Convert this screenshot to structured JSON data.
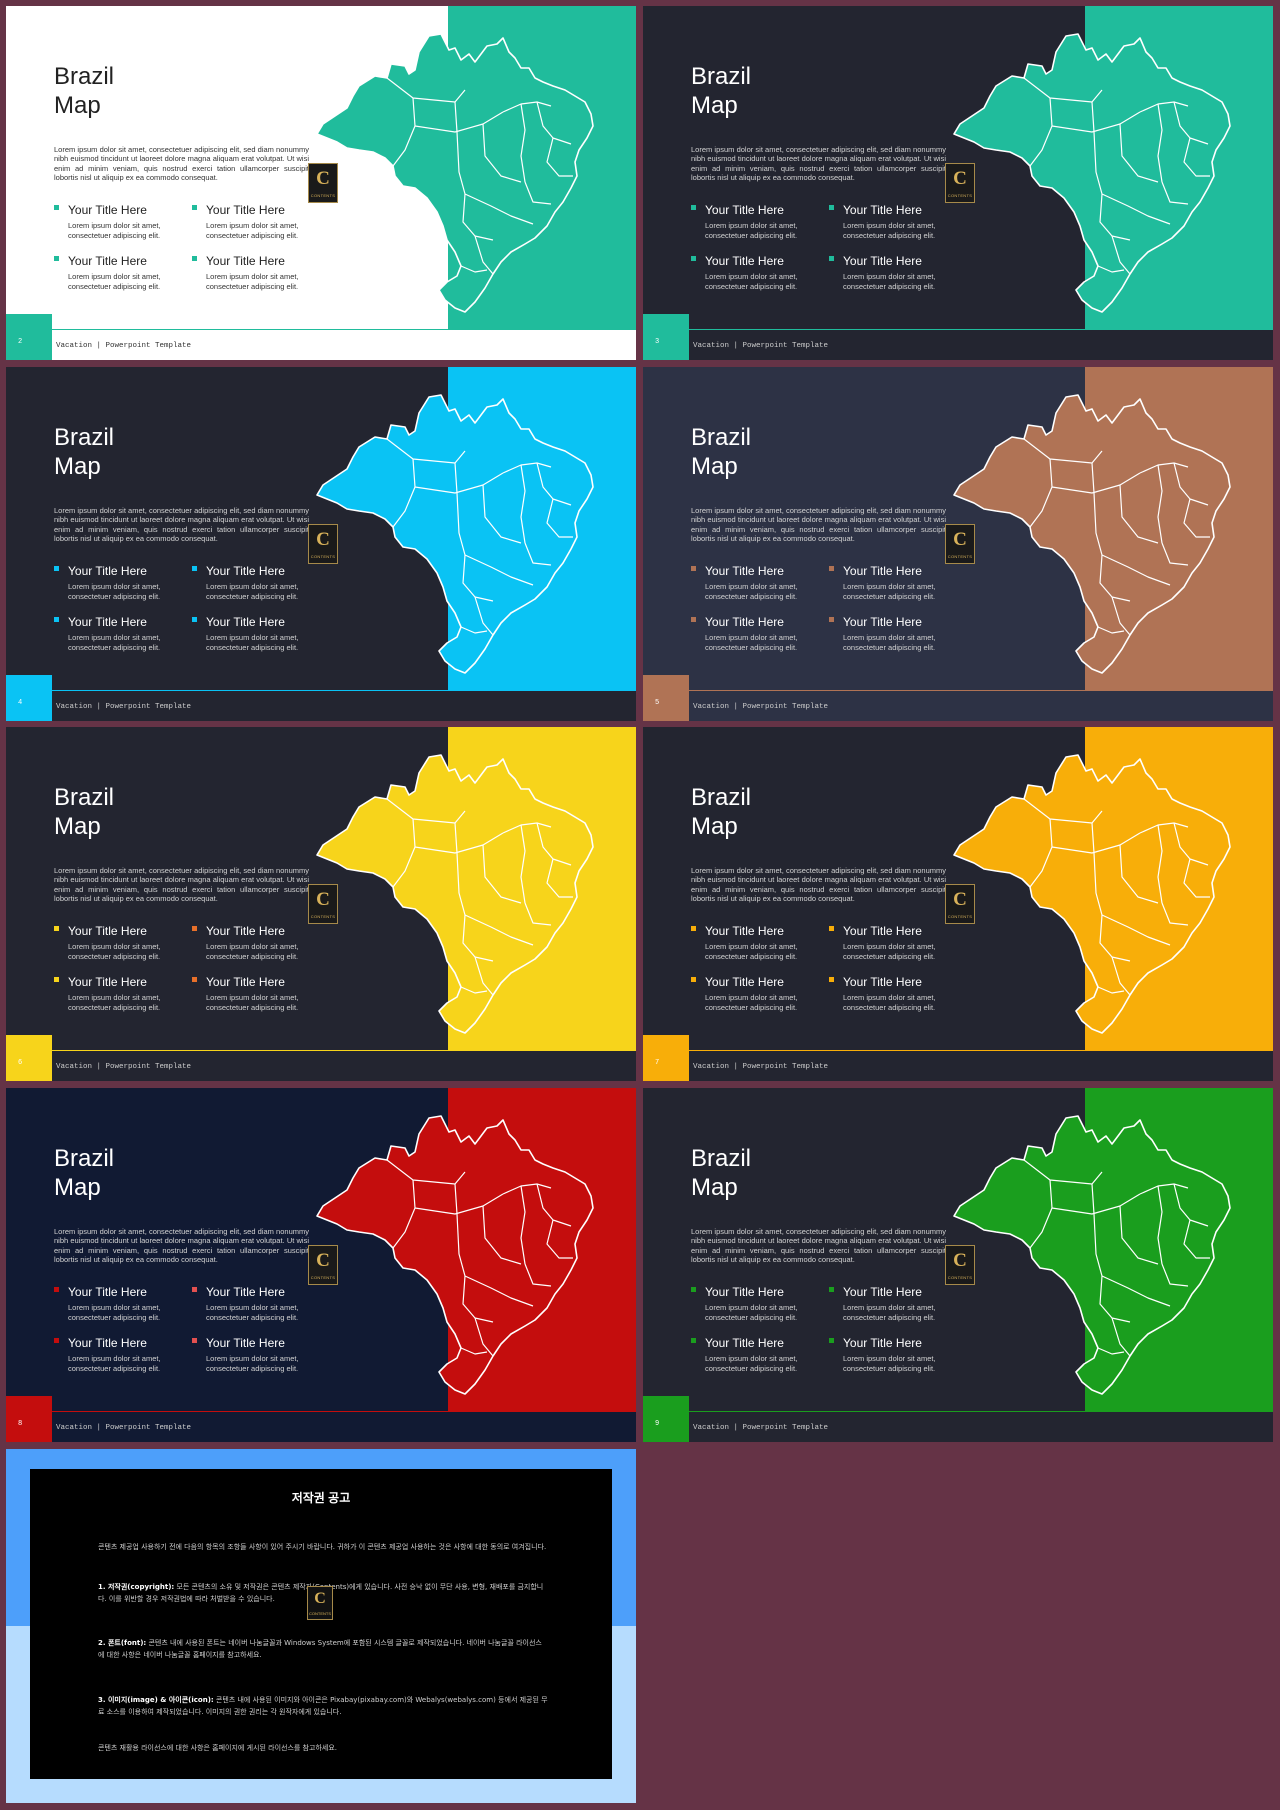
{
  "slides": [
    {
      "page": "2",
      "theme": {
        "bg": "#ffffff",
        "accent": "#20bc9c",
        "bullets": [
          "#20bc9c",
          "#20bc9c"
        ],
        "title_color": "#222222",
        "text_color": "#333333",
        "footer_bg": "#ffffff",
        "footer_text": "#333333"
      }
    },
    {
      "page": "3",
      "theme": {
        "bg": "#232530",
        "accent": "#20bc9c",
        "bullets": [
          "#20bc9c",
          "#20bc9c"
        ],
        "title_color": "#ffffff",
        "text_color": "#d2d2d2",
        "footer_bg": "#232530",
        "footer_text": "#cccccc"
      }
    },
    {
      "page": "4",
      "theme": {
        "bg": "#232530",
        "accent": "#0ac3f4",
        "bullets": [
          "#0ac3f4",
          "#0ac3f4"
        ],
        "title_color": "#ffffff",
        "text_color": "#d2d2d2",
        "footer_bg": "#232530",
        "footer_text": "#cccccc"
      }
    },
    {
      "page": "5",
      "theme": {
        "bg": "#2d3245",
        "accent": "#b07355",
        "bullets": [
          "#b07355",
          "#b07355"
        ],
        "title_color": "#ffffff",
        "text_color": "#d2d2d2",
        "footer_bg": "#2d3245",
        "footer_text": "#cccccc"
      }
    },
    {
      "page": "6",
      "theme": {
        "bg": "#232530",
        "accent": "#f7d41b",
        "bullets": [
          "#f7d41b",
          "#e8702a"
        ],
        "title_color": "#ffffff",
        "text_color": "#d2d2d2",
        "footer_bg": "#232530",
        "footer_text": "#cccccc"
      }
    },
    {
      "page": "7",
      "theme": {
        "bg": "#232530",
        "accent": "#f8ae09",
        "bullets": [
          "#f8ae09",
          "#f8ae09"
        ],
        "title_color": "#ffffff",
        "text_color": "#d2d2d2",
        "footer_bg": "#232530",
        "footer_text": "#cccccc"
      }
    },
    {
      "page": "8",
      "theme": {
        "bg": "#111a33",
        "accent": "#c40d0d",
        "bullets": [
          "#c40d0d",
          "#e35050"
        ],
        "title_color": "#ffffff",
        "text_color": "#d2d2d2",
        "footer_bg": "#111a33",
        "footer_text": "#cccccc"
      }
    },
    {
      "page": "9",
      "theme": {
        "bg": "#232530",
        "accent": "#1a9e1e",
        "bullets": [
          "#1a9e1e",
          "#1a9e1e"
        ],
        "title_color": "#ffffff",
        "text_color": "#d2d2d2",
        "footer_bg": "#232530",
        "footer_text": "#cccccc"
      }
    }
  ],
  "content": {
    "title_line1": "Brazil",
    "title_line2": "Map",
    "description": "Lorem ipsum dolor sit amet, consectetuer adipiscing elit, sed diam nonummy nibh euismod tincidunt ut laoreet dolore magna aliquam erat volutpat. Ut wisi enim ad minim veniam, quis nostrud exerci tation ullamcorper suscipit lobortis nisl ut aliquip ex ea commodo consequat.",
    "items": [
      {
        "title": "Your Title Here",
        "body": "Lorem ipsum dolor sit amet, consectetuer adipiscing elit."
      },
      {
        "title": "Your Title Here",
        "body": "Lorem ipsum dolor sit amet, consectetuer adipiscing elit."
      },
      {
        "title": "Your Title Here",
        "body": "Lorem ipsum dolor sit amet, consectetuer adipiscing elit."
      },
      {
        "title": "Your Title Here",
        "body": "Lorem ipsum dolor sit amet, consectetuer adipiscing elit."
      }
    ],
    "footer": "Vacation | Powerpoint Template",
    "logo_letter": "C",
    "logo_text": "CONTENTS"
  },
  "notice": {
    "title": "저작권 공고",
    "intro": "콘텐츠 제공업 사용하기 전에 다음의 항목의 조항들 사항이 있어 주시기 바랍니다. 귀하가 이 콘텐츠 제공업 사용하는 것은 사항에 대한 동의로 여겨집니다.",
    "p1_label": "1. 저작권(copyright):",
    "p1_text": " 모든 콘텐츠의 소유 및 저작권은 콘텐츠 제작자(Contents)에게 있습니다. 사전 승낙 없이 무단 사용, 변형, 재배포를 금지합니다. 이를 위반할 경우 저작권법에 따라 처벌받을 수 있습니다.",
    "p2_label": "2. 폰트(font):",
    "p2_text": " 콘텐츠 내에 사용된 폰트는 네이버 나눔글꼴과 Windows System에 포함된 시스템 글꼴로 제작되었습니다. 네이버 나눔글꼴 라이선스에 대한 사항은 네이버 나눔글꼴 홈페이지를 참고하세요.",
    "p3_label": "3. 이미지(image) & 아이콘(icon):",
    "p3_text": " 콘텐츠 내에 사용된 이미지와 아이콘은 Pixabay(pixabay.com)와 Webalys(webalys.com) 등에서 제공된 무료 소스를 이용하여 제작되었습니다. 이미지의 권한 권리는 각 원작자에게 있습니다.",
    "outro": "콘텐츠 재활용 라이선스에 대한 사항은 홈페이지에 게시된 라이선스를 참고하세요."
  }
}
